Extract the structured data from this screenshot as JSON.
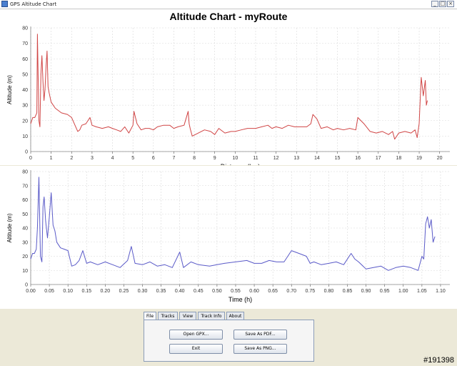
{
  "window": {
    "title": "GPS Altitude Chart",
    "buttons": [
      "_",
      "□",
      "×"
    ]
  },
  "chart_title": "Altitude Chart - myRoute",
  "chart_data": [
    {
      "type": "line",
      "title": "Altitude Chart - myRoute",
      "xlabel": "Distance (km)",
      "ylabel": "Altitude (m)",
      "xlim": [
        0,
        20.5
      ],
      "ylim": [
        0,
        80
      ],
      "xticks": [
        0,
        1,
        2,
        3,
        4,
        5,
        6,
        7,
        8,
        9,
        10,
        11,
        12,
        13,
        14,
        15,
        16,
        17,
        18,
        19,
        20
      ],
      "yticks": [
        0,
        10,
        20,
        30,
        40,
        50,
        60,
        70,
        80
      ],
      "color": "#d04545",
      "grid": true,
      "x": [
        0,
        0.1,
        0.2,
        0.3,
        0.33,
        0.4,
        0.45,
        0.5,
        0.55,
        0.6,
        0.65,
        0.7,
        0.75,
        0.8,
        0.85,
        0.9,
        1.0,
        1.2,
        1.5,
        1.8,
        2.0,
        2.2,
        2.3,
        2.4,
        2.5,
        2.7,
        2.9,
        3.0,
        3.2,
        3.5,
        3.8,
        4.0,
        4.2,
        4.4,
        4.6,
        4.8,
        5.0,
        5.05,
        5.2,
        5.4,
        5.6,
        5.8,
        6.0,
        6.2,
        6.5,
        6.8,
        7.0,
        7.2,
        7.5,
        7.7,
        7.75,
        7.8,
        7.9,
        8.2,
        8.5,
        8.8,
        9.0,
        9.2,
        9.5,
        9.8,
        10.0,
        10.3,
        10.6,
        11.0,
        11.3,
        11.6,
        11.8,
        12.0,
        12.3,
        12.6,
        12.9,
        13.2,
        13.5,
        13.7,
        13.8,
        14.0,
        14.2,
        14.5,
        14.8,
        15.0,
        15.3,
        15.6,
        15.9,
        16.0,
        16.3,
        16.6,
        16.9,
        17.2,
        17.5,
        17.7,
        17.8,
        18.0,
        18.3,
        18.6,
        18.8,
        18.9,
        19.0,
        19.05,
        19.1,
        19.2,
        19.3,
        19.35,
        19.4
      ],
      "y": [
        18,
        22,
        22,
        25,
        76,
        20,
        16,
        50,
        62,
        45,
        33,
        40,
        55,
        65,
        42,
        38,
        32,
        28,
        25,
        24,
        22,
        16,
        13,
        14,
        17,
        18,
        22,
        17,
        16,
        15,
        16,
        15,
        14,
        13,
        16,
        12,
        17,
        26,
        18,
        14,
        15,
        15,
        14,
        16,
        17,
        17,
        15,
        16,
        17,
        26,
        18,
        15,
        10,
        12,
        14,
        13,
        11,
        15,
        12,
        13,
        13,
        14,
        15,
        15,
        16,
        17,
        15,
        16,
        15,
        17,
        16,
        16,
        16,
        18,
        24,
        21,
        15,
        16,
        14,
        15,
        14,
        15,
        14,
        22,
        18,
        13,
        12,
        13,
        11,
        13,
        8,
        12,
        13,
        12,
        14,
        9,
        18,
        34,
        48,
        36,
        46,
        30,
        33
      ]
    },
    {
      "type": "line",
      "xlabel": "Time (h)",
      "ylabel": "Altitude (m)",
      "xlim": [
        0,
        1.125
      ],
      "ylim": [
        0,
        80
      ],
      "xticks": [
        "0.00",
        "0.05",
        "0.10",
        "0.15",
        "0.20",
        "0.25",
        "0.30",
        "0.35",
        "0.40",
        "0.45",
        "0.50",
        "0.55",
        "0.60",
        "0.65",
        "0.70",
        "0.75",
        "0.80",
        "0.85",
        "0.90",
        "0.95",
        "1.00",
        "1.05",
        "1.10"
      ],
      "yticks": [
        0,
        10,
        20,
        30,
        40,
        50,
        60,
        70,
        80
      ],
      "color": "#5a5ac8",
      "grid": true,
      "x": [
        0,
        0.005,
        0.01,
        0.015,
        0.018,
        0.022,
        0.026,
        0.03,
        0.033,
        0.036,
        0.04,
        0.045,
        0.05,
        0.055,
        0.06,
        0.065,
        0.07,
        0.08,
        0.09,
        0.1,
        0.11,
        0.12,
        0.13,
        0.14,
        0.15,
        0.16,
        0.18,
        0.2,
        0.22,
        0.24,
        0.26,
        0.27,
        0.28,
        0.3,
        0.32,
        0.34,
        0.36,
        0.38,
        0.4,
        0.41,
        0.43,
        0.45,
        0.48,
        0.5,
        0.52,
        0.55,
        0.58,
        0.6,
        0.62,
        0.64,
        0.66,
        0.68,
        0.7,
        0.72,
        0.74,
        0.75,
        0.76,
        0.78,
        0.8,
        0.82,
        0.84,
        0.86,
        0.87,
        0.88,
        0.9,
        0.92,
        0.94,
        0.96,
        0.98,
        1.0,
        1.02,
        1.04,
        1.05,
        1.055,
        1.06,
        1.065,
        1.07,
        1.075,
        1.08,
        1.085
      ],
      "y": [
        18,
        22,
        22,
        25,
        40,
        76,
        20,
        16,
        55,
        62,
        45,
        33,
        48,
        65,
        42,
        38,
        30,
        26,
        25,
        24,
        13,
        14,
        17,
        24,
        15,
        16,
        14,
        16,
        14,
        12,
        17,
        27,
        15,
        14,
        16,
        13,
        14,
        12,
        23,
        12,
        16,
        14,
        13,
        14,
        15,
        16,
        17,
        15,
        15,
        17,
        16,
        16,
        24,
        22,
        20,
        15,
        16,
        14,
        15,
        16,
        14,
        22,
        18,
        16,
        11,
        12,
        13,
        10,
        12,
        13,
        12,
        10,
        20,
        18,
        43,
        48,
        40,
        46,
        30,
        34
      ]
    }
  ],
  "tabs": [
    "File",
    "Tracks",
    "View",
    "Track Info",
    "About"
  ],
  "active_tab": "File",
  "buttons": {
    "open_gpx": "Open GPX...",
    "save_pdf": "Save As PDF...",
    "exit": "Exit",
    "save_png": "Save As PNG..."
  },
  "watermark": "#191398"
}
